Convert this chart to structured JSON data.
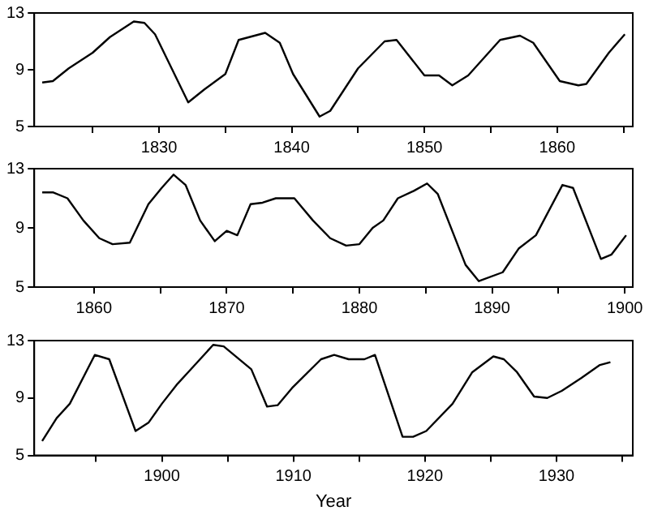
{
  "chart_data": [
    {
      "type": "line",
      "color": "#000000",
      "marker": "none",
      "grid": false,
      "xlim": [
        1820.6,
        1865.7
      ],
      "xticks": [
        {
          "value": 1825,
          "label": null
        },
        1830,
        {
          "value": 1835,
          "label": null
        },
        1840,
        {
          "value": 1845,
          "label": null
        },
        1850,
        {
          "value": 1855,
          "label": null
        },
        1860,
        {
          "value": 1865,
          "label": null
        }
      ],
      "ylim": [
        5,
        13
      ],
      "yticks": [
        5,
        9,
        13
      ],
      "x": [
        1821.2,
        1822,
        1823.2,
        1825,
        1826.3,
        1828.1,
        1828.9,
        1829.7,
        1832.2,
        1833.4,
        1835,
        1836,
        1838,
        1839.1,
        1840.1,
        1842.1,
        1842.9,
        1845,
        1847,
        1847.9,
        1850,
        1851.1,
        1852.1,
        1853.3,
        1855.7,
        1857.2,
        1858.2,
        1860.2,
        1861.6,
        1862.2,
        1863.9,
        1865.1
      ],
      "values": [
        8.1,
        8.2,
        9.1,
        10.2,
        11.3,
        12.4,
        12.3,
        11.5,
        6.7,
        7.6,
        8.7,
        11.1,
        11.6,
        10.9,
        8.7,
        5.7,
        6.1,
        9.1,
        11.0,
        11.1,
        8.6,
        8.6,
        7.9,
        8.6,
        11.1,
        11.4,
        10.9,
        8.2,
        7.9,
        8.0,
        10.2,
        11.5
      ]
    },
    {
      "type": "line",
      "color": "#000000",
      "marker": "none",
      "grid": false,
      "xlim": [
        1855.5,
        1900.6
      ],
      "xticks": [
        1860,
        {
          "value": 1865,
          "label": null
        },
        1870,
        {
          "value": 1875,
          "label": null
        },
        1880,
        {
          "value": 1885,
          "label": null
        },
        1890,
        {
          "value": 1895,
          "label": null
        },
        1900
      ],
      "ylim": [
        5,
        13
      ],
      "yticks": [
        5,
        9,
        13
      ],
      "x": [
        1856.1,
        1856.9,
        1858,
        1859.2,
        1860.4,
        1861.4,
        1862.7,
        1864.1,
        1865.1,
        1866,
        1866.9,
        1868,
        1869.1,
        1870,
        1870.8,
        1871.8,
        1872.7,
        1873.7,
        1875.1,
        1876.5,
        1877.8,
        1879,
        1880,
        1881,
        1881.8,
        1882.9,
        1884.1,
        1885.1,
        1885.9,
        1888,
        1889,
        1890.8,
        1892,
        1893.3,
        1895.3,
        1896.1,
        1898.2,
        1899,
        1900.1
      ],
      "values": [
        11.4,
        11.4,
        11.0,
        9.5,
        8.3,
        7.9,
        8.0,
        10.6,
        11.7,
        12.6,
        11.9,
        9.5,
        8.1,
        8.8,
        8.5,
        10.6,
        10.7,
        11.0,
        11.0,
        9.5,
        8.3,
        7.8,
        7.9,
        9.0,
        9.5,
        11.0,
        11.5,
        12.0,
        11.3,
        6.5,
        5.4,
        6.0,
        7.6,
        8.5,
        11.9,
        11.7,
        6.9,
        7.2,
        8.5
      ]
    },
    {
      "type": "line",
      "color": "#000000",
      "marker": "none",
      "grid": false,
      "xlabel": "Year",
      "xlim": [
        1890.3,
        1935.8
      ],
      "xticks": [
        {
          "value": 1895,
          "label": null
        },
        1900,
        {
          "value": 1905,
          "label": null
        },
        1910,
        {
          "value": 1915,
          "label": null
        },
        1920,
        {
          "value": 1925,
          "label": null
        },
        1930,
        {
          "value": 1935,
          "label": null
        }
      ],
      "ylim": [
        5,
        13
      ],
      "yticks": [
        5,
        9,
        13
      ],
      "x": [
        1890.9,
        1892,
        1893,
        1894.9,
        1896,
        1898,
        1899,
        1900,
        1901.2,
        1902,
        1903.9,
        1904.7,
        1906.8,
        1908,
        1908.8,
        1909.9,
        1912.1,
        1913.1,
        1914.2,
        1915.4,
        1916.2,
        1918.3,
        1919.1,
        1920.1,
        1922.1,
        1923.6,
        1925.2,
        1926,
        1927,
        1928.3,
        1929.3,
        1930.4,
        1931.9,
        1933.3,
        1934.1
      ],
      "values": [
        6.0,
        7.6,
        8.6,
        12.0,
        11.7,
        6.7,
        7.3,
        8.6,
        10.0,
        10.8,
        12.7,
        12.6,
        11.0,
        8.4,
        8.5,
        9.7,
        11.7,
        12.0,
        11.7,
        11.7,
        12.0,
        6.3,
        6.3,
        6.7,
        8.6,
        10.8,
        11.9,
        11.7,
        10.8,
        9.1,
        9.0,
        9.5,
        10.4,
        11.3,
        11.5
      ]
    }
  ]
}
